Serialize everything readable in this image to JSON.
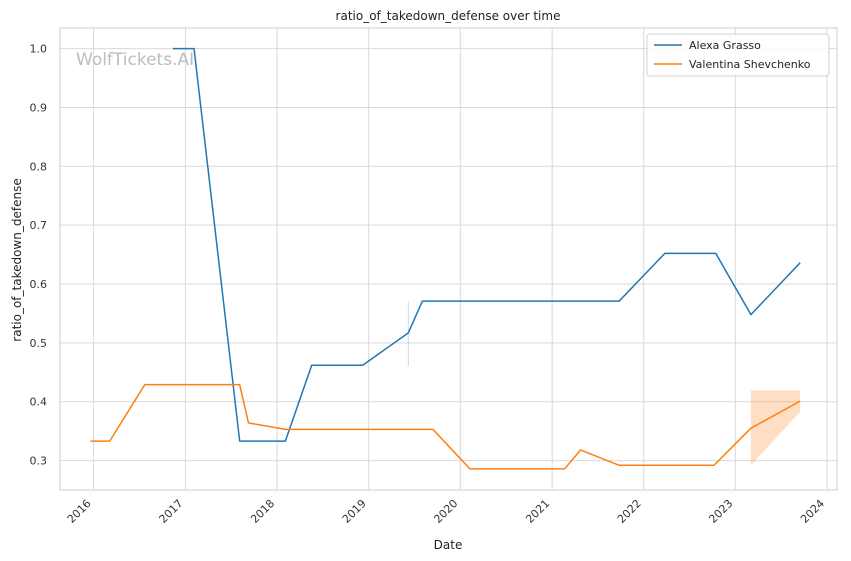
{
  "chart_data": {
    "type": "line",
    "title": "ratio_of_takedown_defense over time",
    "xlabel": "Date",
    "ylabel": "ratio_of_takedown_defense",
    "watermark": "WolfTickets.AI",
    "x_ticks": [
      "2016",
      "2017",
      "2018",
      "2019",
      "2020",
      "2021",
      "2022",
      "2023",
      "2024"
    ],
    "y_ticks": [
      "0.3",
      "0.4",
      "0.5",
      "0.6",
      "0.7",
      "0.8",
      "0.9",
      "1.0"
    ],
    "xlim": [
      "2015-08-20",
      "2024-02-10"
    ],
    "ylim": [
      0.25,
      1.035
    ],
    "grid": true,
    "legend_position": "top-right",
    "series": [
      {
        "name": "Alexa Grasso",
        "color": "#1f77b4",
        "points": [
          {
            "x": "2016-11-12",
            "y": 1.0
          },
          {
            "x": "2017-02-04",
            "y": 1.0
          },
          {
            "x": "2017-08-05",
            "y": 0.333
          },
          {
            "x": "2018-02-03",
            "y": 0.333
          },
          {
            "x": "2018-05-19",
            "y": 0.462
          },
          {
            "x": "2018-12-08",
            "y": 0.462
          },
          {
            "x": "2019-06-08",
            "y": 0.517
          },
          {
            "x": "2019-08-03",
            "y": 0.571
          },
          {
            "x": "2021-09-25",
            "y": 0.571
          },
          {
            "x": "2022-03-26",
            "y": 0.652
          },
          {
            "x": "2022-10-15",
            "y": 0.652
          },
          {
            "x": "2023-03-04",
            "y": 0.548
          },
          {
            "x": "2023-09-16",
            "y": 0.636
          }
        ],
        "band": [
          {
            "x": "2019-06-08",
            "low": 0.46,
            "high": 0.571
          }
        ]
      },
      {
        "name": "Valentina Shevchenko",
        "color": "#ff7f0e",
        "points": [
          {
            "x": "2015-12-19",
            "y": 0.333
          },
          {
            "x": "2016-03-05",
            "y": 0.333
          },
          {
            "x": "2016-07-23",
            "y": 0.429
          },
          {
            "x": "2017-08-05",
            "y": 0.429
          },
          {
            "x": "2017-09-09",
            "y": 0.364
          },
          {
            "x": "2018-02-03",
            "y": 0.353
          },
          {
            "x": "2019-09-14",
            "y": 0.353
          },
          {
            "x": "2020-02-08",
            "y": 0.286
          },
          {
            "x": "2021-02-20",
            "y": 0.286
          },
          {
            "x": "2021-04-24",
            "y": 0.318
          },
          {
            "x": "2021-09-25",
            "y": 0.292
          },
          {
            "x": "2022-10-08",
            "y": 0.292
          },
          {
            "x": "2023-03-04",
            "y": 0.355
          },
          {
            "x": "2023-09-16",
            "y": 0.401
          }
        ],
        "band": [
          {
            "x": "2023-03-04",
            "low": 0.292,
            "high": 0.419
          },
          {
            "x": "2023-09-16",
            "low": 0.383,
            "high": 0.419
          }
        ]
      }
    ]
  }
}
